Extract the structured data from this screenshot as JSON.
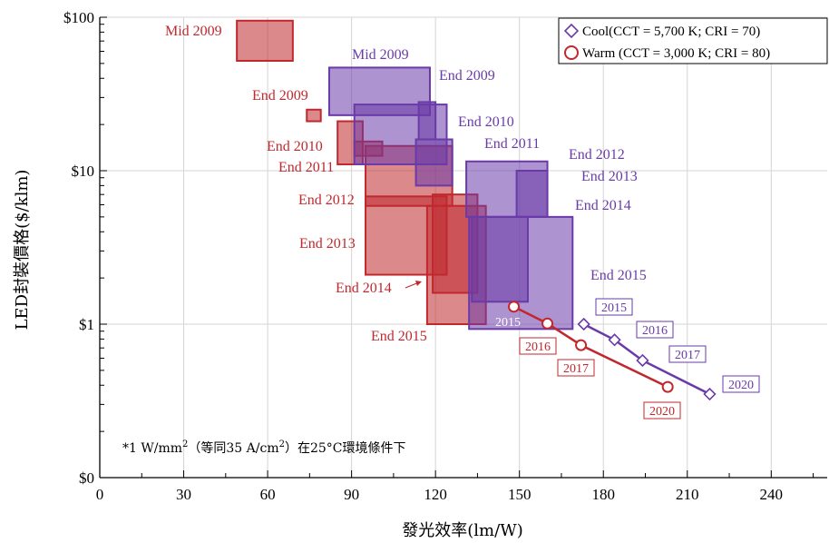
{
  "chart_data": {
    "type": "scatter",
    "xlabel": "發光效率(lm/W)",
    "ylabel": "LED封裝價格($/klm)",
    "xlim": [
      0,
      260
    ],
    "ylim": [
      0.1,
      100
    ],
    "y_scale": "log",
    "x_ticks": [
      0,
      30,
      60,
      90,
      120,
      150,
      180,
      210,
      240
    ],
    "x_tick_labels": [
      "0",
      "30",
      "60",
      "90",
      "120",
      "150",
      "180",
      "210",
      "240"
    ],
    "y_ticks": [
      0.1,
      1,
      10,
      100
    ],
    "y_tick_labels": [
      "$0",
      "$1",
      "$10",
      "$100"
    ],
    "grid": true,
    "legend_position": "top-right",
    "colors": {
      "cool": "#6a3aa8",
      "warm": "#c0282d"
    },
    "legend": [
      {
        "series": "cool",
        "marker": "diamond",
        "label": "Cool(CCT = 5,700 K; CRI = 70)"
      },
      {
        "series": "warm",
        "marker": "circle",
        "label": "Warm (CCT = 3,000 K; CRI = 80)"
      }
    ],
    "boxes": [
      {
        "series": "warm",
        "label": "Mid 2009",
        "x": [
          49,
          69
        ],
        "y": [
          52,
          95
        ]
      },
      {
        "series": "warm",
        "label": "End 2009",
        "x": [
          74,
          79
        ],
        "y": [
          21,
          25
        ]
      },
      {
        "series": "warm",
        "label": "End 2010",
        "x": [
          85,
          94
        ],
        "y": [
          11,
          21
        ]
      },
      {
        "series": "warm",
        "label": "End 2011",
        "x": [
          91,
          101
        ],
        "y": [
          12.5,
          15.5
        ]
      },
      {
        "series": "warm",
        "label": "End 2012",
        "x": [
          95,
          126
        ],
        "y": [
          5.9,
          14.5
        ]
      },
      {
        "series": "warm",
        "label": "End 2013",
        "x": [
          95,
          124
        ],
        "y": [
          2.1,
          6.8
        ]
      },
      {
        "series": "warm",
        "label": "End 2014",
        "x": [
          119,
          135
        ],
        "y": [
          1.6,
          7
        ]
      },
      {
        "series": "warm",
        "label": "End 2015",
        "x": [
          117,
          138
        ],
        "y": [
          1,
          5.9
        ]
      },
      {
        "series": "cool",
        "label": "Mid 2009",
        "x": [
          82,
          118
        ],
        "y": [
          23,
          47
        ]
      },
      {
        "series": "cool",
        "label": "End 2009",
        "x": [
          91,
          124
        ],
        "y": [
          11,
          27
        ]
      },
      {
        "series": "cool",
        "label": "End 2010",
        "x": [
          114,
          120
        ],
        "y": [
          16,
          28
        ]
      },
      {
        "series": "cool",
        "label": "End 2011",
        "x": [
          113,
          126
        ],
        "y": [
          8,
          16
        ]
      },
      {
        "series": "cool",
        "label": "End 2012",
        "x": [
          131,
          160
        ],
        "y": [
          5,
          11.5
        ]
      },
      {
        "series": "cool",
        "label": "End 2013",
        "x": [
          149,
          160
        ],
        "y": [
          5,
          10
        ]
      },
      {
        "series": "cool",
        "label": "End 2014",
        "x": [
          133,
          153
        ],
        "y": [
          1.4,
          5
        ]
      },
      {
        "series": "cool",
        "label": "End 2015",
        "x": [
          132,
          169
        ],
        "y": [
          0.93,
          5
        ]
      }
    ],
    "series": [
      {
        "key": "cool",
        "marker": "diamond",
        "points": [
          {
            "year": "2015",
            "x": 173,
            "y": 1
          },
          {
            "year": "2016",
            "x": 184,
            "y": 0.79
          },
          {
            "year": "2017",
            "x": 194,
            "y": 0.58
          },
          {
            "year": "2020",
            "x": 218,
            "y": 0.35
          }
        ]
      },
      {
        "key": "warm",
        "marker": "circle",
        "points": [
          {
            "year": "2015",
            "x": 148,
            "y": 1.3
          },
          {
            "year": "2016",
            "x": 160,
            "y": 1.01
          },
          {
            "year": "2017",
            "x": 172,
            "y": 0.73
          },
          {
            "year": "2020",
            "x": 203,
            "y": 0.39
          }
        ]
      }
    ],
    "annotations": [
      {
        "series": "warm",
        "text": "Mid 2009"
      },
      {
        "series": "warm",
        "text": "End 2009"
      },
      {
        "series": "warm",
        "text": "End 2010"
      },
      {
        "series": "warm",
        "text": "End 2011"
      },
      {
        "series": "warm",
        "text": "End 2012"
      },
      {
        "series": "warm",
        "text": "End 2013"
      },
      {
        "series": "warm",
        "text": "End 2014"
      },
      {
        "series": "warm",
        "text": "End 2015"
      },
      {
        "series": "cool",
        "text": "Mid 2009"
      },
      {
        "series": "cool",
        "text": "End 2009"
      },
      {
        "series": "cool",
        "text": "End 2010"
      },
      {
        "series": "cool",
        "text": "End 2011"
      },
      {
        "series": "cool",
        "text": "End 2012"
      },
      {
        "series": "cool",
        "text": "End 2013"
      },
      {
        "series": "cool",
        "text": "End 2014"
      },
      {
        "series": "cool",
        "text": "End 2015"
      }
    ],
    "footnote": {
      "text1": "*1 W/mm",
      "sup1": "2",
      "text2": "（等同35 A/cm",
      "sup2": "2",
      "text3": "）在25°C環境條件下"
    }
  }
}
